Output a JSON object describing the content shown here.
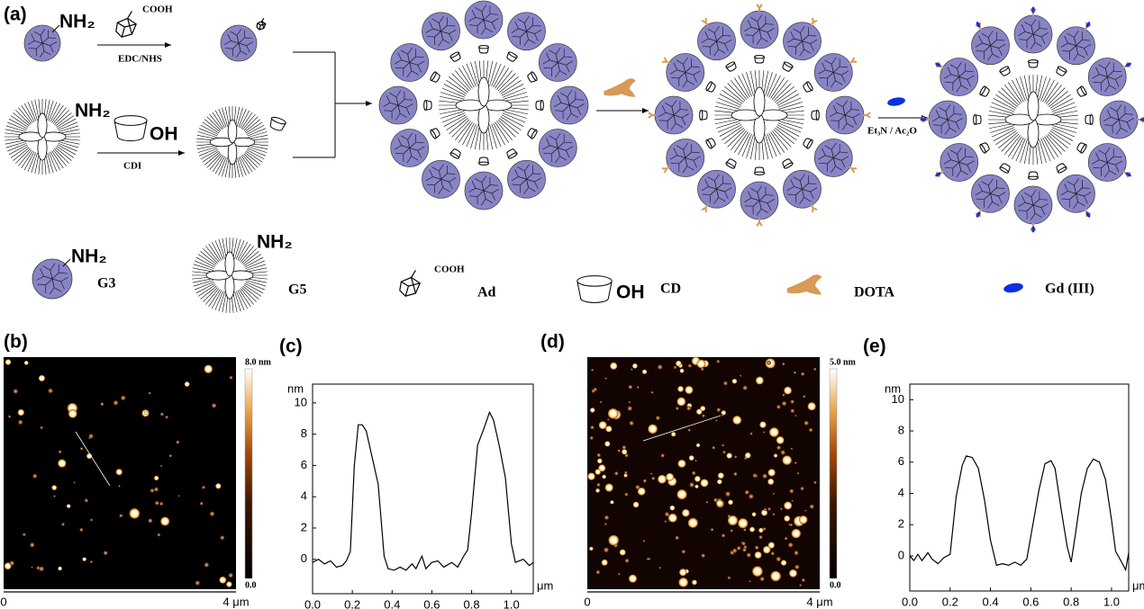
{
  "panels": {
    "a": {
      "label": "(a)",
      "scheme": {
        "nh2_g3": "NH₂",
        "cooh": "COOH",
        "edc": "EDC/NHS",
        "nh2_g5": "NH₂",
        "oh": "OH",
        "cdi": "CDI",
        "reagent": "Et₃N / Ac₂O"
      },
      "legend": {
        "g3_nh2": "NH₂",
        "g3": "G3",
        "g5_nh2": "NH₂",
        "g5": "G5",
        "ad_cooh": "COOH",
        "ad": "Ad",
        "cd_oh": "OH",
        "cd": "CD",
        "dota": "DOTA",
        "gd": "Gd (III)"
      }
    },
    "b": {
      "label": "(b)",
      "bar_max": "8.0 nm",
      "bar_min": "0.0",
      "x_start": "0",
      "x_end": "4 μm"
    },
    "d": {
      "label": "(d)",
      "bar_max": "5.0 nm",
      "bar_min": "0.0",
      "x_start": "0",
      "x_end": "4 μm"
    }
  },
  "chart_data": [
    {
      "type": "line",
      "panel_label": "(c)",
      "y_unit": "nm",
      "x_unit": "μm",
      "color": "#000000",
      "x": [
        0,
        0.03,
        0.06,
        0.09,
        0.12,
        0.15,
        0.17,
        0.19,
        0.21,
        0.23,
        0.25,
        0.27,
        0.3,
        0.33,
        0.36,
        0.38,
        0.41,
        0.44,
        0.47,
        0.5,
        0.52,
        0.55,
        0.57,
        0.6,
        0.63,
        0.66,
        0.7,
        0.73,
        0.76,
        0.78,
        0.8,
        0.83,
        0.86,
        0.89,
        0.91,
        0.94,
        0.97,
        1.0,
        1.02,
        1.06,
        1.09,
        1.11
      ],
      "values": [
        -0.2,
        0,
        -0.3,
        -0.1,
        -0.5,
        -0.4,
        -0.1,
        0.5,
        6,
        8.6,
        8.6,
        8.2,
        6.5,
        4.8,
        0.2,
        -0.6,
        -0.7,
        -0.5,
        -0.7,
        -0.3,
        -0.6,
        0.2,
        -0.6,
        -0.2,
        -0.1,
        -0.5,
        -0.2,
        -0.5,
        0.2,
        0.6,
        3,
        7.3,
        8.3,
        9.4,
        8.9,
        7.2,
        5.2,
        1.0,
        -0.2,
        0,
        -0.4,
        -0.2
      ],
      "xlim": [
        0,
        1.11
      ],
      "ylim": [
        -2.2,
        11.2
      ],
      "xticks": [
        {
          "value": 0,
          "label": "0.0"
        },
        {
          "value": 0.2,
          "label": "0.2"
        },
        {
          "value": 0.4,
          "label": "0.4"
        },
        {
          "value": 0.6,
          "label": "0.6"
        },
        {
          "value": 0.8,
          "label": "0.8"
        },
        {
          "value": 1.0,
          "label": "1.0"
        }
      ],
      "yticks": [
        0,
        2,
        4,
        6,
        8,
        10
      ]
    },
    {
      "type": "line",
      "panel_label": "(e)",
      "y_unit": "nm",
      "x_unit": "μm",
      "color": "#000000",
      "x": [
        0,
        0.02,
        0.04,
        0.06,
        0.09,
        0.11,
        0.14,
        0.17,
        0.2,
        0.23,
        0.26,
        0.28,
        0.31,
        0.34,
        0.37,
        0.4,
        0.43,
        0.46,
        0.49,
        0.52,
        0.55,
        0.58,
        0.61,
        0.64,
        0.67,
        0.7,
        0.72,
        0.75,
        0.78,
        0.8,
        0.82,
        0.85,
        0.88,
        0.91,
        0.94,
        0.97,
        1.0,
        1.02,
        1.05,
        1.07,
        1.085
      ],
      "values": [
        0,
        -0.3,
        0.1,
        -0.3,
        0.2,
        -0.2,
        -0.5,
        -0.1,
        0.1,
        3.8,
        5.8,
        6.4,
        6.3,
        5.6,
        3.6,
        1,
        -0.6,
        -0.5,
        -0.6,
        -0.4,
        -0.6,
        -0.2,
        2,
        4.2,
        5.9,
        6.1,
        5.6,
        3,
        0.6,
        -0.4,
        1.3,
        4,
        5.6,
        6.2,
        6,
        4.9,
        2.3,
        0.3,
        -0.4,
        -0.9,
        0.2
      ],
      "xlim": [
        0,
        1.085
      ],
      "ylim": [
        -2.25,
        11.0
      ],
      "xticks": [
        {
          "value": 0,
          "label": "0.0"
        },
        {
          "value": 0.2,
          "label": "0.2"
        },
        {
          "value": 0.4,
          "label": "0.4"
        },
        {
          "value": 0.6,
          "label": "0.6"
        },
        {
          "value": 0.8,
          "label": "0.8"
        },
        {
          "value": 1.0,
          "label": "1.0"
        }
      ],
      "yticks": [
        0,
        2,
        4,
        6,
        8,
        10
      ]
    }
  ]
}
